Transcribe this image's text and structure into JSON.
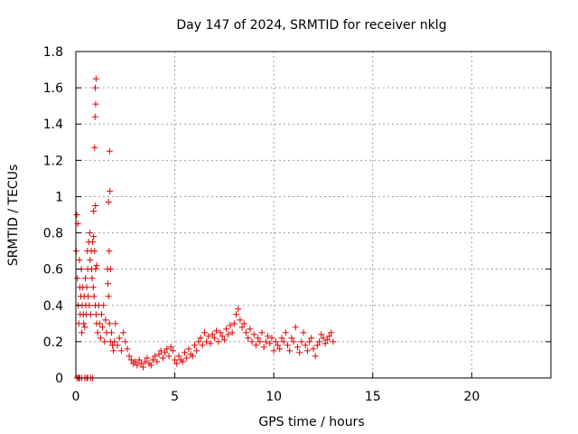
{
  "chart_data": {
    "type": "scatter",
    "title": "Day 147 of 2024, SRMTID for receiver nklg",
    "xlabel": "GPS time / hours",
    "ylabel": "SRMTID / TECUs",
    "xlim": [
      0,
      24
    ],
    "ylim": [
      0,
      1.8
    ],
    "xticks": [
      0,
      5,
      10,
      15,
      20
    ],
    "xtick_labels": [
      "0",
      "5",
      "10",
      "15",
      "20"
    ],
    "yticks": [
      0,
      0.2,
      0.4,
      0.6,
      0.8,
      1,
      1.2,
      1.4,
      1.6,
      1.8
    ],
    "ytick_labels": [
      "0",
      "0.2",
      "0.4",
      "0.6",
      "0.8",
      "1",
      "1.2",
      "1.4",
      "1.6",
      "1.8"
    ],
    "grid": true,
    "marker": "+",
    "color": "#e00000",
    "series": [
      {
        "name": "SRMTID",
        "x": [
          0.02,
          0.05,
          0.08,
          0.1,
          0.12,
          0.15,
          0.18,
          0.2,
          0.22,
          0.25,
          0.28,
          0.3,
          0.32,
          0.35,
          0.38,
          0.4,
          0.42,
          0.45,
          0.48,
          0.5,
          0.52,
          0.55,
          0.58,
          0.6,
          0.62,
          0.65,
          0.68,
          0.7,
          0.72,
          0.75,
          0.78,
          0.8,
          0.82,
          0.85,
          0.88,
          0.9,
          0.92,
          0.95,
          0.98,
          1.0,
          1.02,
          1.05,
          1.1,
          1.15,
          1.2,
          1.25,
          1.3,
          1.35,
          1.4,
          1.45,
          1.5,
          1.55,
          1.6,
          1.65,
          1.7,
          1.75,
          1.8,
          1.85,
          1.9,
          1.95,
          2.0,
          2.1,
          2.2,
          2.3,
          2.4,
          2.5,
          2.6,
          2.7,
          2.8,
          2.9,
          3.0,
          3.1,
          3.2,
          3.3,
          3.4,
          3.5,
          3.6,
          3.7,
          3.8,
          3.9,
          4.0,
          4.1,
          4.2,
          4.3,
          4.4,
          4.5,
          4.6,
          4.7,
          4.8,
          4.9,
          5.0,
          5.1,
          5.2,
          5.3,
          5.4,
          5.5,
          5.6,
          5.7,
          5.8,
          5.9,
          6.0,
          6.1,
          6.2,
          6.3,
          6.4,
          6.5,
          6.6,
          6.7,
          6.8,
          6.9,
          7.0,
          7.1,
          7.2,
          7.3,
          7.4,
          7.5,
          7.6,
          7.7,
          7.8,
          7.9,
          8.0,
          8.1,
          8.2,
          8.3,
          8.4,
          8.5,
          8.6,
          8.7,
          8.8,
          8.9,
          9.0,
          9.1,
          9.2,
          9.3,
          9.4,
          9.5,
          9.6,
          9.7,
          9.8,
          9.9,
          10.0,
          10.1,
          10.2,
          10.3,
          10.4,
          10.5,
          10.6,
          10.7,
          10.8,
          10.9,
          11.0,
          11.1,
          11.2,
          11.3,
          11.4,
          11.5,
          11.6,
          11.7,
          11.8,
          11.9,
          12.0,
          12.1,
          12.2,
          12.3,
          12.4,
          12.5,
          12.6,
          12.7,
          12.8,
          12.9,
          13.0,
          0.95,
          0.97,
          1.0,
          0.98,
          1.02,
          0.99,
          1.7,
          1.65,
          1.72,
          1.68,
          1.75,
          1.62,
          0.9,
          1.05,
          0.05,
          0.3,
          0.15,
          0.6,
          0.45,
          0.75,
          0.12,
          0.85,
          0.2,
          0.55
        ],
        "y": [
          0.7,
          0.9,
          0.55,
          0.85,
          0.4,
          0.3,
          0.65,
          0.5,
          0.35,
          0.45,
          0.6,
          0.25,
          0.4,
          0.5,
          0.35,
          0.3,
          0.45,
          0.28,
          0.55,
          0.4,
          0.35,
          0.5,
          0.7,
          0.6,
          0.45,
          0.75,
          0.4,
          0.8,
          0.65,
          0.35,
          0.7,
          0.6,
          0.55,
          0.75,
          0.5,
          0.92,
          0.45,
          0.7,
          0.4,
          0.6,
          0.35,
          0.3,
          0.25,
          0.4,
          0.3,
          0.22,
          0.35,
          0.28,
          0.4,
          0.2,
          0.32,
          0.25,
          0.6,
          0.45,
          0.3,
          0.2,
          0.25,
          0.18,
          0.15,
          0.2,
          0.3,
          0.18,
          0.22,
          0.15,
          0.25,
          0.2,
          0.16,
          0.12,
          0.1,
          0.08,
          0.09,
          0.07,
          0.1,
          0.08,
          0.06,
          0.09,
          0.11,
          0.08,
          0.07,
          0.1,
          0.12,
          0.09,
          0.13,
          0.15,
          0.11,
          0.14,
          0.16,
          0.12,
          0.17,
          0.15,
          0.1,
          0.08,
          0.12,
          0.1,
          0.09,
          0.14,
          0.11,
          0.16,
          0.13,
          0.12,
          0.18,
          0.15,
          0.2,
          0.22,
          0.18,
          0.25,
          0.2,
          0.23,
          0.19,
          0.24,
          0.22,
          0.26,
          0.2,
          0.25,
          0.23,
          0.21,
          0.27,
          0.24,
          0.29,
          0.25,
          0.3,
          0.35,
          0.38,
          0.32,
          0.28,
          0.3,
          0.25,
          0.22,
          0.27,
          0.2,
          0.24,
          0.18,
          0.22,
          0.2,
          0.25,
          0.17,
          0.2,
          0.23,
          0.19,
          0.22,
          0.15,
          0.2,
          0.18,
          0.16,
          0.22,
          0.2,
          0.25,
          0.18,
          0.15,
          0.22,
          0.2,
          0.28,
          0.17,
          0.14,
          0.2,
          0.25,
          0.18,
          0.15,
          0.2,
          0.22,
          0.16,
          0.12,
          0.18,
          0.2,
          0.24,
          0.22,
          0.19,
          0.21,
          0.23,
          0.25,
          0.2,
          1.27,
          1.44,
          1.51,
          1.6,
          1.65,
          0.95,
          1.25,
          0.97,
          1.03,
          0.7,
          0.6,
          0.52,
          0.78,
          0.62,
          0.0,
          0.0,
          0.0,
          0.0,
          0.0,
          0.0,
          0.0,
          0.0,
          0.0,
          0.0
        ]
      }
    ]
  }
}
